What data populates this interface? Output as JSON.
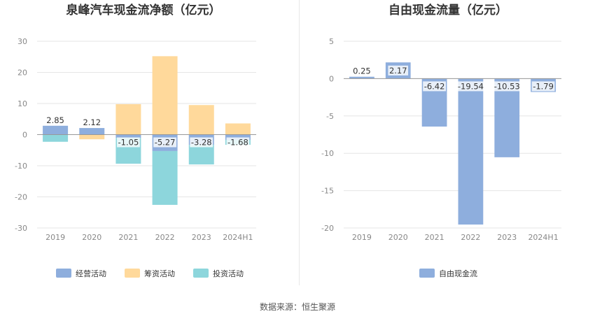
{
  "source": "数据来源：恒生聚源",
  "colors": {
    "operating": "#8eaedd",
    "financing": "#ffd99b",
    "investing": "#8dd6dc",
    "fcf": "#8eaedd",
    "grid": "#e6e6e6",
    "axis": "#999999"
  },
  "chart_data": [
    {
      "type": "bar",
      "stacked": true,
      "title": "泉峰汽车现金流净额（亿元）",
      "categories": [
        "2019",
        "2020",
        "2021",
        "2022",
        "2023",
        "2024H1"
      ],
      "ylim": [
        -30,
        30
      ],
      "yticks": [
        30,
        20,
        10,
        0,
        -10,
        -20,
        -30
      ],
      "series": [
        {
          "name": "经营活动",
          "key": "operating",
          "values": [
            2.85,
            2.12,
            -1.05,
            -5.27,
            -3.28,
            -1.68
          ],
          "labels": [
            "2.85",
            "2.12",
            "-1.05",
            "-5.27",
            "-3.28",
            "-1.68"
          ]
        },
        {
          "name": "筹资活动",
          "key": "financing",
          "values": [
            0,
            -1.5,
            9.8,
            25.2,
            9.5,
            3.6
          ]
        },
        {
          "name": "投资活动",
          "key": "investing",
          "values": [
            -2.3,
            0,
            -8.3,
            -17.3,
            -6.3,
            -1.6
          ]
        }
      ]
    },
    {
      "type": "bar",
      "title": "自由现金流量（亿元）",
      "categories": [
        "2019",
        "2020",
        "2021",
        "2022",
        "2023",
        "2024H1"
      ],
      "ylim": [
        -20,
        5
      ],
      "yticks": [
        5,
        0,
        -5,
        -10,
        -15,
        -20
      ],
      "series": [
        {
          "name": "自由现金流",
          "key": "fcf",
          "values": [
            0.25,
            2.17,
            -6.42,
            -19.54,
            -10.53,
            -1.79
          ],
          "labels": [
            "0.25",
            "2.17",
            "-6.42",
            "-19.54",
            "-10.53",
            "-1.79"
          ]
        }
      ]
    }
  ]
}
